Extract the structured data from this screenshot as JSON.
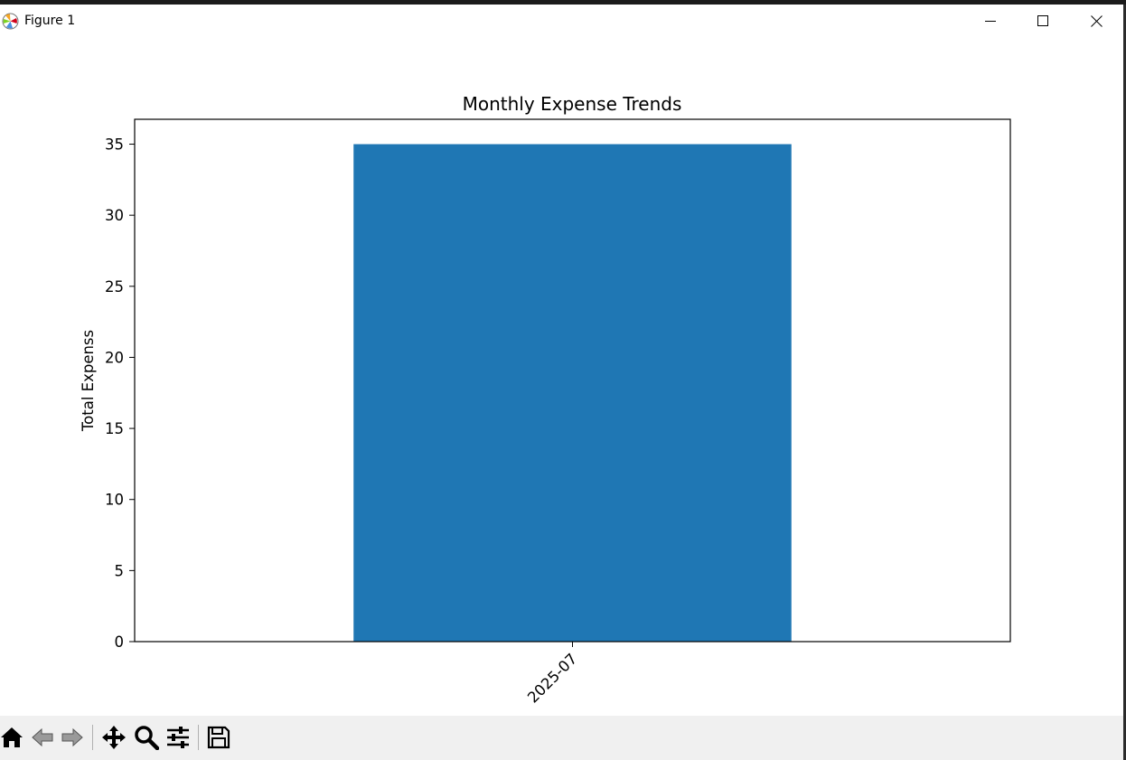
{
  "window": {
    "title": "Figure 1"
  },
  "toolbar": {
    "buttons": [
      {
        "icon": "home-icon"
      },
      {
        "icon": "back-arrow-icon"
      },
      {
        "icon": "forward-arrow-icon"
      },
      {
        "icon": "pan-move-icon"
      },
      {
        "icon": "zoom-magnifier-icon"
      },
      {
        "icon": "configure-subplots-icon"
      },
      {
        "icon": "save-floppy-icon"
      }
    ]
  },
  "colors": {
    "bar": "#1f77b4",
    "toolbar_bg": "#f0f0f0"
  },
  "chart_data": {
    "type": "bar",
    "title": "Monthly Expense Trends",
    "xlabel": "",
    "ylabel": "Total Expenss",
    "categories": [
      "2025-07"
    ],
    "values": [
      35
    ],
    "ylim": [
      0,
      36.75
    ],
    "yticks": [
      0,
      5,
      10,
      15,
      20,
      25,
      30,
      35
    ],
    "xtick_rotation": 45,
    "grid": false,
    "legend": "none"
  }
}
